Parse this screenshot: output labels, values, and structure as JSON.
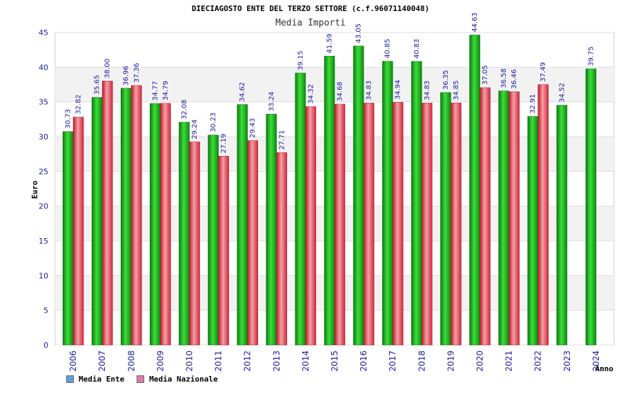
{
  "chart_data": {
    "type": "bar",
    "title": "DIECIAGOSTO ENTE DEL TERZO SETTORE (c.f.96071140048)",
    "subtitle": "Media Importi",
    "xlabel": "Anno",
    "ylabel": "Euro",
    "ylim": [
      0,
      45
    ],
    "yticks": [
      0,
      5,
      10,
      15,
      20,
      25,
      30,
      35,
      40,
      45
    ],
    "grid": true,
    "legend_position": "bottom-left",
    "categories": [
      "2006",
      "2007",
      "2008",
      "2009",
      "2010",
      "2011",
      "2012",
      "2013",
      "2014",
      "2015",
      "2016",
      "2017",
      "2018",
      "2019",
      "2020",
      "2021",
      "2022",
      "2023",
      "2024"
    ],
    "series": [
      {
        "name": "Media Ente",
        "legend_color": "#5aa0e6",
        "bar_color": "#1fae1f",
        "values": [
          30.73,
          35.65,
          36.96,
          34.77,
          32.08,
          30.23,
          34.62,
          33.24,
          39.15,
          41.59,
          43.05,
          40.85,
          40.83,
          36.35,
          44.63,
          36.58,
          32.91,
          34.52,
          39.75
        ],
        "labels": [
          "30.73",
          "35.65",
          "36.96",
          "34.77",
          "32.08",
          "30.23",
          "34.62",
          "33.24",
          "39.15",
          "41.59",
          "43.05",
          "40.85",
          "40.83",
          "36.35",
          "44.63",
          "36.58",
          "32.91",
          "34.52",
          "39.75"
        ]
      },
      {
        "name": "Media Nazionale",
        "legend_color": "#e07aa8",
        "bar_color": "#e8364a",
        "values": [
          32.82,
          38.0,
          37.36,
          34.79,
          29.24,
          27.19,
          29.43,
          27.71,
          34.32,
          34.68,
          34.83,
          34.94,
          34.83,
          34.85,
          37.05,
          36.46,
          37.49,
          null,
          null
        ],
        "labels": [
          "32.82",
          "38.00",
          "37.36",
          "34.79",
          "29.24",
          "27.19",
          "29.43",
          "27.71",
          "34.32",
          "34.68",
          "34.83",
          "34.94",
          "34.83",
          "34.85",
          "37.05",
          "36.46",
          "37.49",
          null,
          null
        ]
      }
    ]
  }
}
